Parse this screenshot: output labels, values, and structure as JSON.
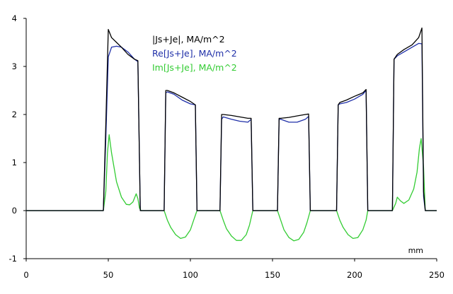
{
  "chart_data": {
    "type": "line",
    "title": "",
    "xlabel": "mm",
    "ylabel": "",
    "xlim": [
      0,
      250
    ],
    "ylim": [
      -1,
      4
    ],
    "x_ticks": [
      0,
      50,
      100,
      150,
      200,
      250
    ],
    "y_ticks": [
      -1,
      0,
      1,
      2,
      3,
      4
    ],
    "grid": false,
    "legend_position": "top-center",
    "series": [
      {
        "name": "|Js+Je|, MA/m^2",
        "color": "#000000",
        "x": [
          0,
          47,
          48.5,
          50,
          52,
          55,
          58,
          62,
          66,
          68,
          69.5,
          84,
          85,
          86,
          90,
          95,
          100,
          103,
          104,
          118,
          119,
          120,
          125,
          130,
          135,
          137,
          138,
          153,
          154,
          155,
          160,
          165,
          170,
          172,
          173,
          189,
          190,
          191,
          195,
          200,
          205,
          207,
          208,
          223,
          224,
          226,
          230,
          235,
          239,
          241,
          242,
          243,
          250
        ],
        "y": [
          0,
          0,
          1.8,
          3.77,
          3.6,
          3.5,
          3.4,
          3.25,
          3.15,
          3.12,
          0,
          0,
          2.5,
          2.5,
          2.45,
          2.36,
          2.27,
          2.2,
          0,
          0,
          2.0,
          2.0,
          1.98,
          1.95,
          1.92,
          1.92,
          0,
          0,
          1.92,
          1.92,
          1.94,
          1.97,
          2.0,
          2.01,
          0,
          0,
          2.2,
          2.25,
          2.3,
          2.38,
          2.45,
          2.52,
          0,
          0,
          3.15,
          3.25,
          3.35,
          3.45,
          3.6,
          3.8,
          0.4,
          0,
          0
        ]
      },
      {
        "name": "Re[Js+Je], MA/m^2",
        "color": "#1f2fa8",
        "x": [
          0,
          47,
          48.5,
          50,
          52,
          55,
          58,
          62,
          66,
          68,
          69.5,
          84,
          85,
          86,
          90,
          95,
          100,
          103,
          104,
          118,
          119,
          120,
          125,
          130,
          135,
          137,
          138,
          153,
          154,
          155,
          160,
          165,
          170,
          172,
          173,
          189,
          190,
          191,
          195,
          200,
          205,
          207,
          208,
          223,
          224,
          226,
          230,
          235,
          239,
          241,
          242,
          243,
          250
        ],
        "y": [
          0,
          0,
          1.5,
          3.2,
          3.4,
          3.42,
          3.4,
          3.3,
          3.15,
          3.1,
          0,
          0,
          2.45,
          2.47,
          2.42,
          2.3,
          2.22,
          2.2,
          0,
          0,
          1.9,
          1.95,
          1.9,
          1.86,
          1.84,
          1.9,
          0,
          0,
          1.9,
          1.9,
          1.84,
          1.84,
          1.9,
          1.96,
          0,
          0,
          2.2,
          2.22,
          2.25,
          2.32,
          2.42,
          2.5,
          0,
          0,
          3.15,
          3.22,
          3.3,
          3.4,
          3.48,
          3.47,
          0.3,
          0,
          0
        ]
      },
      {
        "name": "Im[Js+Je], MA/m^2",
        "color": "#33cc33",
        "x": [
          0,
          47,
          48.5,
          49.5,
          50.5,
          52,
          55,
          58,
          61,
          63,
          65,
          67,
          68,
          69,
          70,
          84,
          86,
          88,
          91,
          94,
          97,
          100,
          102,
          104,
          118,
          120,
          122,
          125,
          128,
          131,
          134,
          136,
          138,
          153,
          155,
          157,
          160,
          163,
          166,
          169,
          171,
          173,
          189,
          191,
          193,
          196,
          199,
          202,
          205,
          207,
          208,
          223,
          225,
          226,
          228,
          230,
          233,
          236,
          238,
          239.5,
          240.5,
          242,
          243,
          250
        ],
        "y": [
          0,
          0,
          0.4,
          1.2,
          1.58,
          1.2,
          0.6,
          0.28,
          0.13,
          0.12,
          0.18,
          0.35,
          0.25,
          0.05,
          0,
          0,
          -0.2,
          -0.35,
          -0.5,
          -0.58,
          -0.55,
          -0.4,
          -0.2,
          0,
          0,
          -0.2,
          -0.38,
          -0.53,
          -0.62,
          -0.62,
          -0.5,
          -0.3,
          0,
          0,
          -0.2,
          -0.4,
          -0.56,
          -0.63,
          -0.6,
          -0.45,
          -0.25,
          0,
          0,
          -0.2,
          -0.35,
          -0.5,
          -0.58,
          -0.56,
          -0.4,
          -0.2,
          0,
          0,
          0.15,
          0.28,
          0.2,
          0.15,
          0.22,
          0.45,
          0.8,
          1.3,
          1.5,
          0.9,
          0,
          0
        ]
      }
    ]
  }
}
